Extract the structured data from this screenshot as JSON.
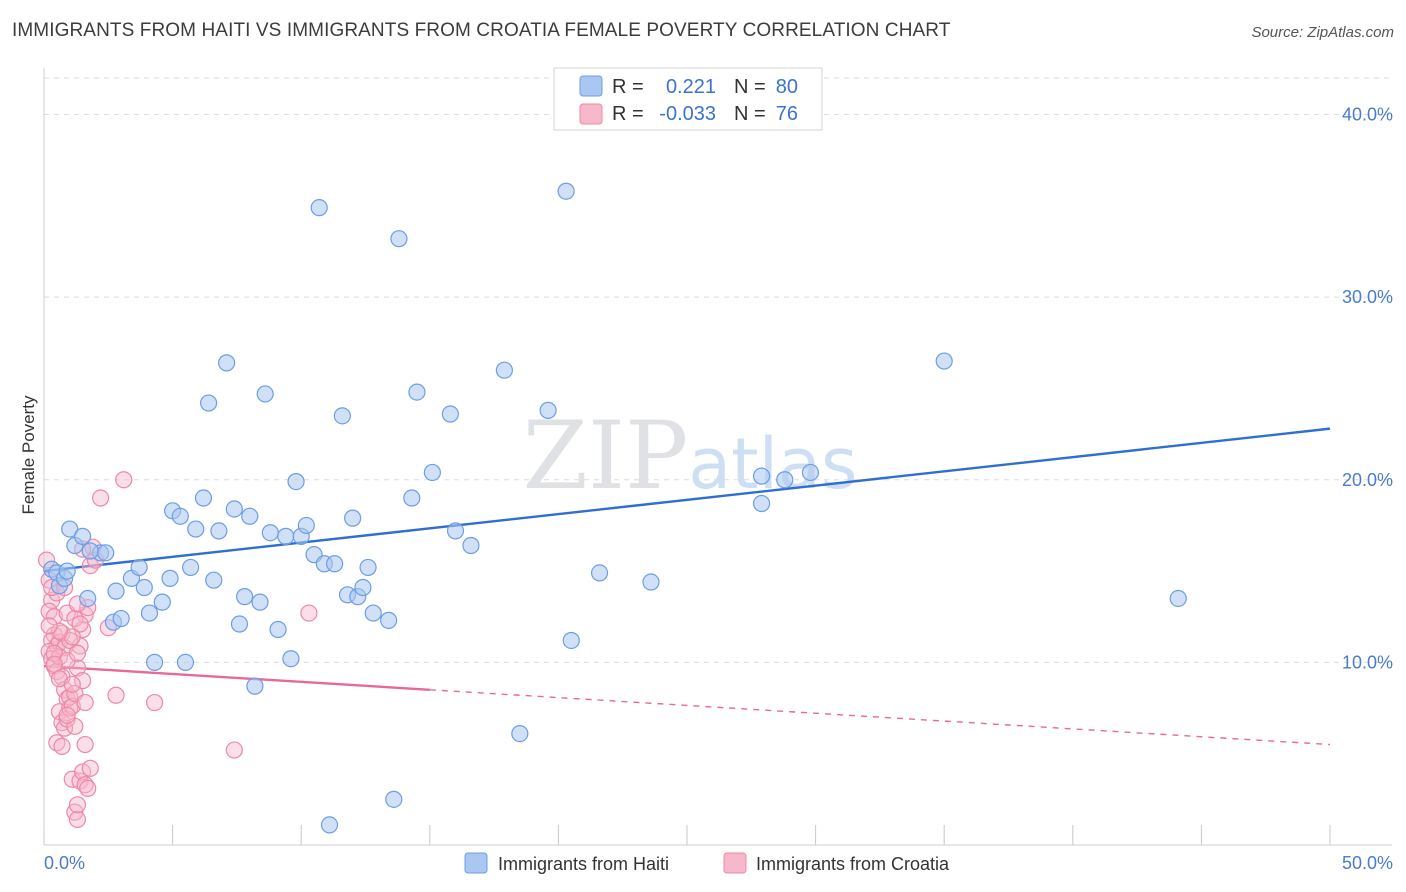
{
  "title": "IMMIGRANTS FROM HAITI VS IMMIGRANTS FROM CROATIA FEMALE POVERTY CORRELATION CHART",
  "source": "Source: ZipAtlas.com",
  "watermark": "ZIPatlas",
  "colors": {
    "haiti_fill": "#a9c7f0",
    "haiti_stroke": "#6d9de6",
    "haiti_line": "#2f6fd0",
    "croatia_fill": "#f7b8cb",
    "croatia_stroke": "#ee88a8",
    "croatia_line": "#e8689a",
    "grid": "#dcdcdc",
    "axis_text": "#4a7bd0"
  },
  "legend": {
    "rows": [
      {
        "r_label": "R =",
        "r_value": "0.221",
        "n_label": "N =",
        "n_value": "80"
      },
      {
        "r_label": "R =",
        "r_value": "-0.033",
        "n_label": "N =",
        "n_value": "76"
      }
    ]
  },
  "chart_data": {
    "type": "scatter",
    "title": "IMMIGRANTS FROM HAITI VS IMMIGRANTS FROM CROATIA FEMALE POVERTY CORRELATION CHART",
    "xlabel": "",
    "ylabel": "Female Poverty",
    "xlim": [
      0,
      50
    ],
    "ylim": [
      0,
      42
    ],
    "x_tick_labels": [
      "0.0%",
      "50.0%"
    ],
    "y_ticks": [
      10,
      20,
      30,
      40
    ],
    "y_tick_labels": [
      "10.0%",
      "20.0%",
      "30.0%",
      "40.0%"
    ],
    "series": [
      {
        "name": "Immigrants from Haiti",
        "r": 0.221,
        "n": 80,
        "trend": {
          "x0": 0,
          "y0": 15.0,
          "x1": 50,
          "y1": 22.8
        },
        "points": [
          [
            0.3,
            15.1
          ],
          [
            0.5,
            14.9
          ],
          [
            0.6,
            14.2
          ],
          [
            0.8,
            14.6
          ],
          [
            1.0,
            17.3
          ],
          [
            1.2,
            16.4
          ],
          [
            1.5,
            16.9
          ],
          [
            1.7,
            13.5
          ],
          [
            2.2,
            16.0
          ],
          [
            2.7,
            12.2
          ],
          [
            2.8,
            13.9
          ],
          [
            3.0,
            12.4
          ],
          [
            3.4,
            14.6
          ],
          [
            3.7,
            15.2
          ],
          [
            3.9,
            14.1
          ],
          [
            4.1,
            12.7
          ],
          [
            4.3,
            10.0
          ],
          [
            4.6,
            13.3
          ],
          [
            4.9,
            14.6
          ],
          [
            5.0,
            18.3
          ],
          [
            5.3,
            18.0
          ],
          [
            5.5,
            10.0
          ],
          [
            5.7,
            15.2
          ],
          [
            5.9,
            17.3
          ],
          [
            6.2,
            19.0
          ],
          [
            6.4,
            24.2
          ],
          [
            6.6,
            14.5
          ],
          [
            6.8,
            17.2
          ],
          [
            7.1,
            26.4
          ],
          [
            7.4,
            18.4
          ],
          [
            7.6,
            12.1
          ],
          [
            7.8,
            13.6
          ],
          [
            8.0,
            18.0
          ],
          [
            8.2,
            8.7
          ],
          [
            8.4,
            13.3
          ],
          [
            8.6,
            24.7
          ],
          [
            8.8,
            17.1
          ],
          [
            9.1,
            11.8
          ],
          [
            9.4,
            16.9
          ],
          [
            9.6,
            10.2
          ],
          [
            9.8,
            19.9
          ],
          [
            10.0,
            16.9
          ],
          [
            10.2,
            17.5
          ],
          [
            10.5,
            15.9
          ],
          [
            10.7,
            34.9
          ],
          [
            10.9,
            15.4
          ],
          [
            11.1,
            1.1
          ],
          [
            11.3,
            15.4
          ],
          [
            11.6,
            23.5
          ],
          [
            11.8,
            13.7
          ],
          [
            12.0,
            17.9
          ],
          [
            12.2,
            13.6
          ],
          [
            12.4,
            14.1
          ],
          [
            12.6,
            15.2
          ],
          [
            12.8,
            12.7
          ],
          [
            13.4,
            12.3
          ],
          [
            13.6,
            2.5
          ],
          [
            13.8,
            33.2
          ],
          [
            14.3,
            19.0
          ],
          [
            14.5,
            24.8
          ],
          [
            15.1,
            20.4
          ],
          [
            15.8,
            23.6
          ],
          [
            16.0,
            17.2
          ],
          [
            16.6,
            16.4
          ],
          [
            17.9,
            26.0
          ],
          [
            18.5,
            6.1
          ],
          [
            19.6,
            23.8
          ],
          [
            20.3,
            35.8
          ],
          [
            20.5,
            11.2
          ],
          [
            21.6,
            14.9
          ],
          [
            23.6,
            14.4
          ],
          [
            27.9,
            20.2
          ],
          [
            27.9,
            18.7
          ],
          [
            28.8,
            20.0
          ],
          [
            29.8,
            20.4
          ],
          [
            35.0,
            26.5
          ],
          [
            44.1,
            13.5
          ],
          [
            1.8,
            16.1
          ],
          [
            2.4,
            16.0
          ],
          [
            0.9,
            15.0
          ]
        ]
      },
      {
        "name": "Immigrants from Croatia",
        "r": -0.033,
        "n": 76,
        "trend": {
          "x0": 0,
          "y0": 9.8,
          "x1": 15,
          "y1": 8.5,
          "dash_to_x": 50,
          "dash_to_y": 5.5
        },
        "points": [
          [
            0.1,
            15.6
          ],
          [
            0.2,
            14.5
          ],
          [
            0.3,
            13.4
          ],
          [
            0.2,
            12.8
          ],
          [
            0.4,
            11.5
          ],
          [
            0.3,
            11.2
          ],
          [
            0.5,
            10.9
          ],
          [
            0.2,
            10.6
          ],
          [
            0.3,
            10.2
          ],
          [
            0.4,
            9.8
          ],
          [
            0.5,
            9.5
          ],
          [
            0.4,
            12.5
          ],
          [
            0.5,
            13.8
          ],
          [
            0.6,
            11.1
          ],
          [
            0.7,
            11.6
          ],
          [
            0.8,
            10.8
          ],
          [
            0.6,
            10.3
          ],
          [
            0.7,
            9.2
          ],
          [
            0.8,
            8.5
          ],
          [
            0.9,
            8.0
          ],
          [
            0.6,
            7.3
          ],
          [
            0.7,
            6.7
          ],
          [
            0.8,
            6.4
          ],
          [
            0.9,
            6.9
          ],
          [
            1.0,
            7.5
          ],
          [
            0.5,
            5.6
          ],
          [
            0.7,
            5.4
          ],
          [
            1.1,
            3.6
          ],
          [
            1.2,
            1.8
          ],
          [
            1.3,
            1.4
          ],
          [
            1.3,
            2.2
          ],
          [
            1.4,
            3.5
          ],
          [
            1.5,
            4.0
          ],
          [
            1.6,
            3.3
          ],
          [
            1.7,
            3.1
          ],
          [
            1.8,
            4.2
          ],
          [
            1.6,
            5.5
          ],
          [
            1.0,
            8.1
          ],
          [
            1.1,
            7.6
          ],
          [
            1.2,
            8.3
          ],
          [
            1.3,
            9.7
          ],
          [
            1.4,
            10.9
          ],
          [
            1.5,
            11.8
          ],
          [
            1.6,
            12.6
          ],
          [
            1.7,
            13.0
          ],
          [
            1.8,
            15.3
          ],
          [
            1.9,
            16.3
          ],
          [
            1.5,
            16.2
          ],
          [
            1.0,
            11.2
          ],
          [
            0.9,
            12.7
          ],
          [
            1.2,
            12.4
          ],
          [
            1.3,
            13.2
          ],
          [
            1.4,
            12.1
          ],
          [
            1.5,
            9.0
          ],
          [
            1.6,
            7.8
          ],
          [
            2.2,
            19.0
          ],
          [
            2.5,
            11.9
          ],
          [
            2.8,
            8.2
          ],
          [
            3.1,
            20.0
          ],
          [
            4.3,
            7.8
          ],
          [
            7.4,
            5.2
          ],
          [
            10.3,
            12.7
          ],
          [
            0.3,
            14.1
          ],
          [
            0.8,
            14.1
          ],
          [
            0.4,
            10.5
          ],
          [
            1.1,
            11.4
          ],
          [
            0.6,
            11.7
          ],
          [
            0.9,
            10.1
          ],
          [
            1.2,
            6.5
          ],
          [
            0.4,
            9.9
          ],
          [
            0.9,
            7.1
          ],
          [
            1.3,
            10.5
          ],
          [
            2.0,
            15.6
          ],
          [
            0.2,
            12.0
          ],
          [
            0.6,
            9.1
          ],
          [
            1.1,
            8.8
          ]
        ]
      }
    ]
  },
  "bottom_legend": {
    "haiti_label": "Immigrants from Haiti",
    "croatia_label": "Immigrants from Croatia"
  }
}
